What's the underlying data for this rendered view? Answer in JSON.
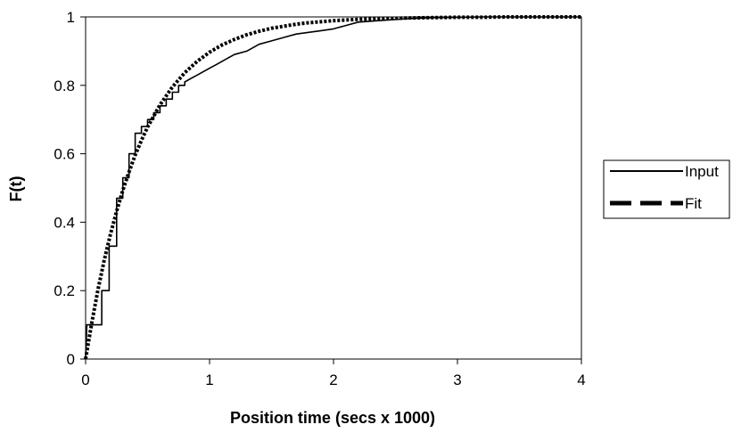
{
  "chart_data": {
    "type": "line",
    "title": "",
    "xlabel": "Position time (secs x 1000)",
    "ylabel": "F(t)",
    "xlim": [
      0,
      4
    ],
    "ylim": [
      0,
      1
    ],
    "x_ticks": [
      "0",
      "1",
      "2",
      "3",
      "4"
    ],
    "y_ticks": [
      "0",
      "0.2",
      "0.4",
      "0.6",
      "0.8",
      "1"
    ],
    "grid": false,
    "legend_position": "right",
    "series": [
      {
        "name": "Input",
        "style": "solid",
        "color": "#000000",
        "x": [
          0,
          0.01,
          0.13,
          0.13,
          0.19,
          0.19,
          0.25,
          0.25,
          0.3,
          0.3,
          0.35,
          0.35,
          0.4,
          0.4,
          0.45,
          0.45,
          0.5,
          0.5,
          0.55,
          0.55,
          0.6,
          0.6,
          0.65,
          0.65,
          0.7,
          0.7,
          0.75,
          0.75,
          0.8,
          0.8,
          0.85,
          0.9,
          0.95,
          1.0,
          1.05,
          1.1,
          1.2,
          1.3,
          1.4,
          1.5,
          1.6,
          1.7,
          1.8,
          1.9,
          2.0,
          2.1,
          2.2,
          2.4,
          2.6,
          2.8,
          3.0,
          3.2,
          3.5,
          4.0
        ],
        "y": [
          0,
          0.1,
          0.1,
          0.2,
          0.2,
          0.33,
          0.33,
          0.47,
          0.47,
          0.53,
          0.53,
          0.6,
          0.6,
          0.66,
          0.66,
          0.68,
          0.68,
          0.7,
          0.7,
          0.72,
          0.72,
          0.74,
          0.74,
          0.76,
          0.76,
          0.78,
          0.78,
          0.8,
          0.8,
          0.81,
          0.82,
          0.83,
          0.84,
          0.85,
          0.86,
          0.87,
          0.89,
          0.9,
          0.92,
          0.93,
          0.94,
          0.95,
          0.955,
          0.96,
          0.965,
          0.975,
          0.985,
          0.99,
          0.995,
          0.998,
          0.999,
          1.0,
          1.0,
          1.0
        ]
      },
      {
        "name": "Fit",
        "style": "dashed",
        "color": "#000000",
        "x": [
          0,
          0.05,
          0.1,
          0.15,
          0.2,
          0.25,
          0.3,
          0.35,
          0.4,
          0.45,
          0.5,
          0.6,
          0.7,
          0.8,
          0.9,
          1.0,
          1.1,
          1.2,
          1.3,
          1.4,
          1.5,
          1.6,
          1.7,
          1.8,
          1.9,
          2.0,
          2.2,
          2.4,
          2.6,
          2.8,
          3.0,
          3.2,
          3.4,
          3.6,
          3.8,
          4.0
        ],
        "y": [
          0,
          0.107,
          0.203,
          0.288,
          0.364,
          0.432,
          0.493,
          0.547,
          0.596,
          0.639,
          0.678,
          0.743,
          0.795,
          0.837,
          0.87,
          0.897,
          0.918,
          0.934,
          0.948,
          0.958,
          0.967,
          0.973,
          0.979,
          0.983,
          0.986,
          0.989,
          0.993,
          0.995,
          0.997,
          0.998,
          0.999,
          0.999,
          1.0,
          1.0,
          1.0,
          1.0
        ]
      }
    ]
  }
}
